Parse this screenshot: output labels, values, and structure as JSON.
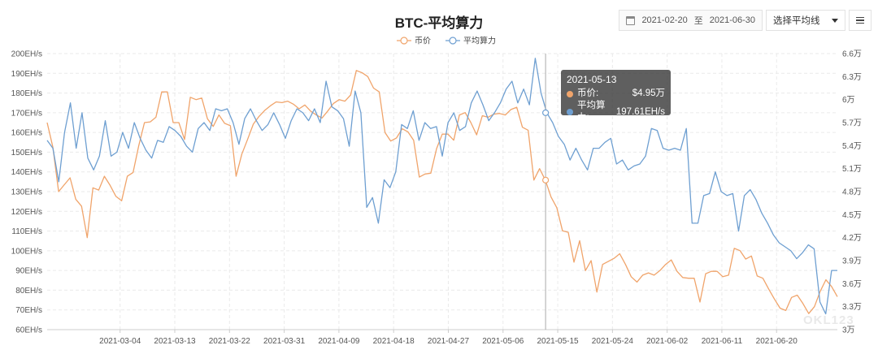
{
  "header": {
    "title": "BTC-平均算力"
  },
  "controls": {
    "date_start": "2021-02-20",
    "date_sep": "至",
    "date_end": "2021-06-30",
    "ma_select": "选择平均线",
    "calendar_icon": "calendar-icon",
    "menu_icon": "hamburger-menu-icon"
  },
  "tooltip": {
    "date": "2021-05-13",
    "price_label": "币价:",
    "price_value": "$4.95万",
    "hash_label": "平均算力:",
    "hash_value": "197.61EH/s"
  },
  "watermark": "OKL123",
  "chart_data": {
    "type": "line",
    "title": "BTC-平均算力",
    "x_tick_labels": [
      "2021-03-04",
      "2021-03-13",
      "2021-03-22",
      "2021-03-31",
      "2021-04-09",
      "2021-04-18",
      "2021-04-27",
      "2021-05-06",
      "2021-05-15",
      "2021-05-24",
      "2021-06-02",
      "2021-06-11",
      "2021-06-20"
    ],
    "x_start": "2021-02-20",
    "x_end": "2021-06-30",
    "y_left": {
      "ticks": [
        "60EH/s",
        "70EH/s",
        "80EH/s",
        "90EH/s",
        "100EH/s",
        "110EH/s",
        "120EH/s",
        "130EH/s",
        "140EH/s",
        "150EH/s",
        "160EH/s",
        "170EH/s",
        "180EH/s",
        "190EH/s",
        "200EH/s"
      ],
      "range": [
        60,
        200
      ],
      "unit": "EH/s"
    },
    "y_right": {
      "ticks": [
        "3万",
        "3.3万",
        "3.6万",
        "3.9万",
        "4.2万",
        "4.5万",
        "4.8万",
        "5.1万",
        "5.4万",
        "5.7万",
        "6万",
        "6.3万",
        "6.6万"
      ],
      "range": [
        3.0,
        6.6
      ],
      "unit": "万"
    },
    "legend_position": "top-center",
    "grid": true,
    "crosshair_date": "2021-05-13",
    "series": [
      {
        "name": "币价",
        "axis": "right",
        "color": "#f0a46b",
        "unit": "万 USD",
        "values": [
          5.7,
          5.38,
          4.8,
          4.89,
          4.98,
          4.7,
          4.61,
          4.2,
          4.85,
          4.82,
          5.0,
          4.88,
          4.74,
          4.68,
          5.0,
          5.05,
          5.4,
          5.7,
          5.71,
          5.77,
          6.1,
          6.1,
          5.7,
          5.7,
          5.48,
          6.03,
          6.0,
          6.02,
          5.75,
          5.65,
          5.8,
          5.69,
          5.66,
          5.0,
          5.29,
          5.48,
          5.68,
          5.78,
          5.86,
          5.92,
          5.97,
          5.96,
          5.98,
          5.94,
          5.88,
          5.93,
          5.85,
          5.8,
          5.76,
          5.85,
          5.95,
          6.0,
          5.98,
          6.06,
          6.38,
          6.35,
          6.3,
          6.15,
          6.1,
          5.57,
          5.46,
          5.5,
          5.62,
          5.58,
          5.47,
          4.99,
          5.03,
          5.04,
          5.36,
          5.55,
          5.55,
          5.47,
          5.8,
          5.83,
          5.7,
          5.54,
          5.79,
          5.77,
          5.81,
          5.82,
          5.8,
          5.87,
          5.9,
          5.64,
          5.6,
          4.95,
          5.1,
          4.95,
          4.73,
          4.59,
          4.29,
          4.27,
          3.88,
          4.16,
          3.77,
          3.9,
          3.49,
          3.85,
          3.89,
          3.93,
          3.99,
          3.85,
          3.69,
          3.62,
          3.71,
          3.74,
          3.71,
          3.77,
          3.85,
          3.91,
          3.76,
          3.68,
          3.67,
          3.67,
          3.36,
          3.73,
          3.76,
          3.76,
          3.69,
          3.71,
          4.06,
          4.03,
          3.92,
          3.96,
          3.7,
          3.67,
          3.53,
          3.4,
          3.28,
          3.25,
          3.42,
          3.45,
          3.34,
          3.21,
          3.3,
          3.5,
          3.65,
          3.56,
          3.43
        ]
      },
      {
        "name": "平均算力",
        "axis": "left",
        "color": "#6e9fd1",
        "unit": "EH/s",
        "values": [
          156,
          152,
          135,
          160,
          175,
          152,
          170,
          147,
          141,
          148,
          166,
          148,
          150,
          160,
          152,
          165,
          157,
          151,
          147,
          156,
          155,
          163,
          161,
          158,
          153,
          150,
          162,
          165,
          161,
          172,
          171,
          172,
          165,
          154,
          167,
          172,
          166,
          161,
          164,
          170,
          164,
          157,
          166,
          172,
          170,
          166,
          172,
          165,
          186,
          173,
          171,
          167,
          153,
          181,
          170,
          122,
          127,
          114,
          136,
          132,
          140,
          164,
          162,
          171,
          156,
          165,
          162,
          163,
          148,
          165,
          170,
          161,
          163,
          175,
          181,
          174,
          166,
          170,
          175,
          182,
          186,
          175,
          182,
          174,
          197.6,
          180,
          170,
          165,
          158,
          154,
          146,
          152,
          146,
          141,
          152,
          152,
          155,
          157,
          144,
          146,
          141,
          143,
          144,
          148,
          162,
          161,
          152,
          151,
          152,
          151,
          162,
          114,
          114,
          128,
          129,
          140,
          130,
          128,
          129,
          110,
          128,
          131,
          126,
          119,
          114,
          108,
          104,
          102,
          100,
          96,
          99,
          103,
          101,
          74,
          68,
          90,
          90
        ]
      }
    ]
  }
}
